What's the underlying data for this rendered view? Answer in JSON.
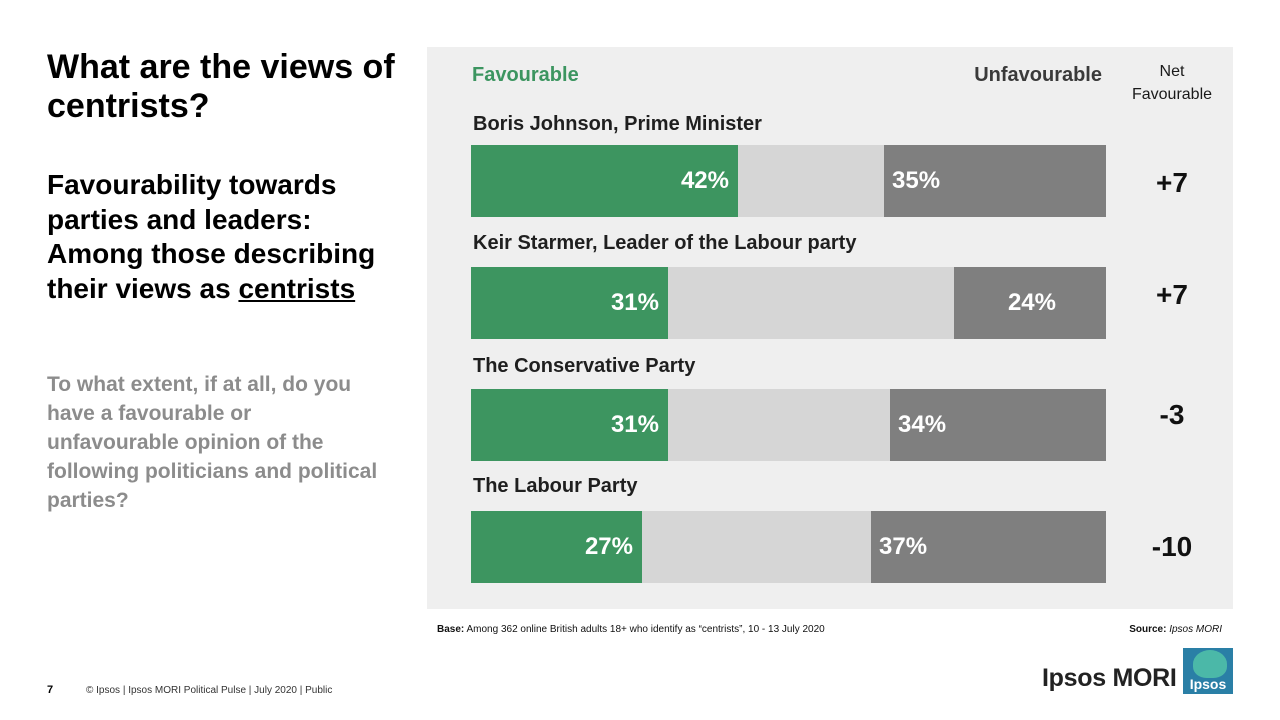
{
  "title": "What are the views of centrists?",
  "subtitle_prefix": "Favourability towards parties and leaders: Among those describing their views as ",
  "subtitle_emphasis": "centrists",
  "question": "To what extent, if at all, do you have a favourable or unfavourable opinion of the following politicians and political parties?",
  "legend": {
    "favourable": "Favourable",
    "unfavourable": "Unfavourable",
    "net_header": "Net Favourable"
  },
  "colors": {
    "favourable": "#3d9560",
    "unfavourable": "#7f7f7f",
    "neutral": "#d6d6d6",
    "panel": "#efefef"
  },
  "chart_data": {
    "type": "bar",
    "orientation": "horizontal-stacked",
    "xlim": [
      0,
      100
    ],
    "categories": [
      "Boris Johnson, Prime Minister",
      "Keir Starmer, Leader of the Labour party",
      "The Conservative Party",
      "The Labour Party"
    ],
    "series": [
      {
        "name": "Favourable",
        "values": [
          42,
          31,
          31,
          27
        ],
        "labels": [
          "42%",
          "31%",
          "31%",
          "27%"
        ]
      },
      {
        "name": "Unfavourable",
        "values": [
          35,
          24,
          34,
          37
        ],
        "labels": [
          "35%",
          "24%",
          "34%",
          "37%"
        ]
      }
    ],
    "net_favourable": [
      "+7",
      "+7",
      "-3",
      "-10"
    ]
  },
  "base_label": "Base:",
  "base_text": "Among 362 online British adults 18+ who identify as “centrists”, 10 - 13 July 2020",
  "source_label": "Source:",
  "source_text": "Ipsos MORI",
  "page_number": "7",
  "footer": "© Ipsos | Ipsos MORI Political Pulse | July 2020 | Public",
  "logo": {
    "wordmark": "Ipsos MORI",
    "badge": "Ipsos"
  }
}
